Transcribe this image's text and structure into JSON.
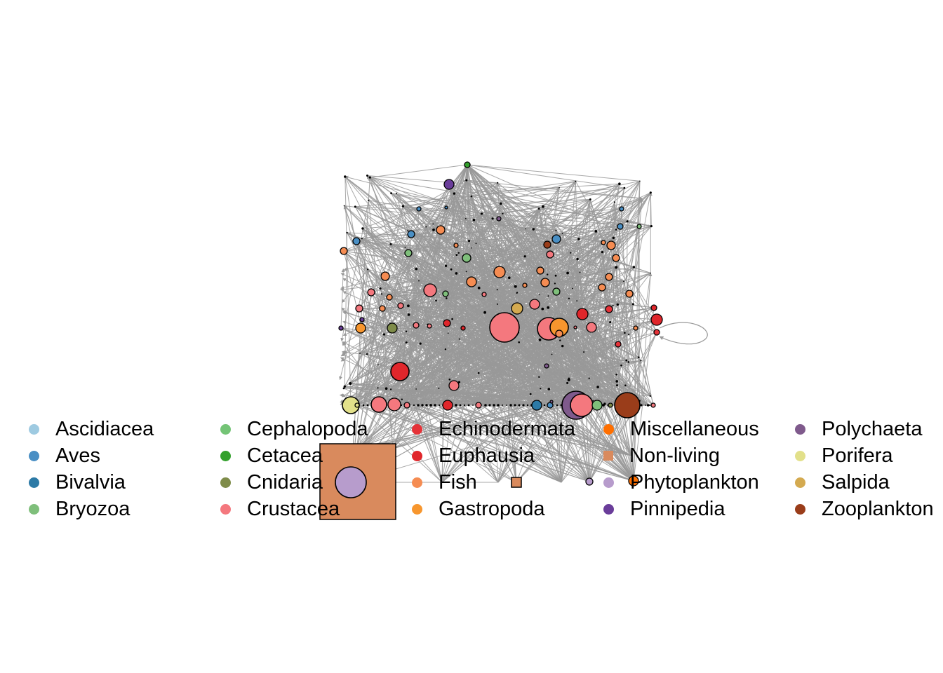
{
  "legend": {
    "items": [
      {
        "label": "Ascidiacea",
        "color": "#9ecae1",
        "shape": "circle"
      },
      {
        "label": "Aves",
        "color": "#4a8fc4",
        "shape": "circle"
      },
      {
        "label": "Bivalvia",
        "color": "#2c7aa6",
        "shape": "circle"
      },
      {
        "label": "Bryozoa",
        "color": "#7fbf7b",
        "shape": "circle"
      },
      {
        "label": "Cephalopoda",
        "color": "#74c476",
        "shape": "circle"
      },
      {
        "label": "Cetacea",
        "color": "#33a02c",
        "shape": "circle"
      },
      {
        "label": "Cnidaria",
        "color": "#7f8c4a",
        "shape": "circle"
      },
      {
        "label": "Crustacea",
        "color": "#f4787e",
        "shape": "circle"
      },
      {
        "label": "Echinodermata",
        "color": "#e53238",
        "shape": "circle"
      },
      {
        "label": "Euphausia",
        "color": "#e0262b",
        "shape": "circle"
      },
      {
        "label": "Fish",
        "color": "#f58c52",
        "shape": "circle"
      },
      {
        "label": "Gastropoda",
        "color": "#f7962e",
        "shape": "circle"
      },
      {
        "label": "Miscellaneous",
        "color": "#ff6f00",
        "shape": "circle"
      },
      {
        "label": "Non-living",
        "color": "#d98a5d",
        "shape": "square"
      },
      {
        "label": "Phytoplankton",
        "color": "#b79ccc",
        "shape": "circle"
      },
      {
        "label": "Pinnipedia",
        "color": "#6a3d9a",
        "shape": "circle"
      },
      {
        "label": "Polychaeta",
        "color": "#7f5a8c",
        "shape": "circle"
      },
      {
        "label": "Porifera",
        "color": "#e2e08a",
        "shape": "circle"
      },
      {
        "label": "Salpida",
        "color": "#d4aa50",
        "shape": "circle"
      },
      {
        "label": "Zooplankton",
        "color": "#9a3d1a",
        "shape": "circle"
      }
    ]
  },
  "edge_color": "#999999",
  "node_stroke": "#000000"
}
